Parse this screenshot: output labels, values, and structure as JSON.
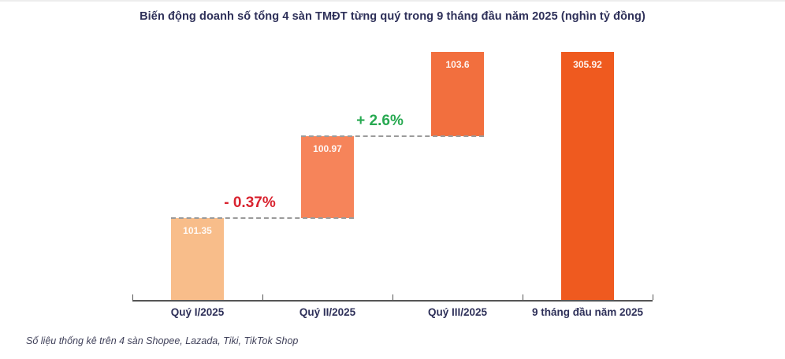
{
  "chart_data": {
    "type": "bar",
    "subtype": "waterfall",
    "title": "Biến động doanh số tổng 4 sàn TMĐT từng quý trong 9 tháng đầu năm 2025 (nghìn tỷ đồng)",
    "unit": "nghìn tỷ đồng",
    "categories": [
      "Quý I/2025",
      "Quý II/2025",
      "Quý III/2025",
      "9 tháng đầu năm 2025"
    ],
    "values": [
      101.35,
      100.97,
      103.6,
      305.92
    ],
    "bar_starts": [
      0,
      101.35,
      202.32,
      0
    ],
    "value_labels": [
      "101.35",
      "100.97",
      "103.6",
      "305.92"
    ],
    "bar_colors": [
      "#F8BD8A",
      "#F6845A",
      "#F26F3E",
      "#EF5A1F"
    ],
    "annotations": [
      {
        "label": "- 0.37%",
        "direction": "decrease",
        "between": [
          0,
          1
        ],
        "level": 101.35
      },
      {
        "label": "+ 2.6%",
        "direction": "increase",
        "between": [
          1,
          2
        ],
        "level": 202.32
      }
    ],
    "ylim": [
      0,
      305.92
    ],
    "grid": false,
    "legend": false,
    "source_note": "Số liệu thống kê trên 4 sàn Shopee, Lazada, Tiki, TikTok Shop"
  },
  "colors": {
    "title": "#2E3059",
    "axis_label": "#2E3059",
    "axis_line": "#555555",
    "dashed_line": "#9B9B9B",
    "value_label": "#FFFFFF",
    "negative": "#D9232F",
    "positive": "#27A951",
    "source_note": "#40415A"
  }
}
